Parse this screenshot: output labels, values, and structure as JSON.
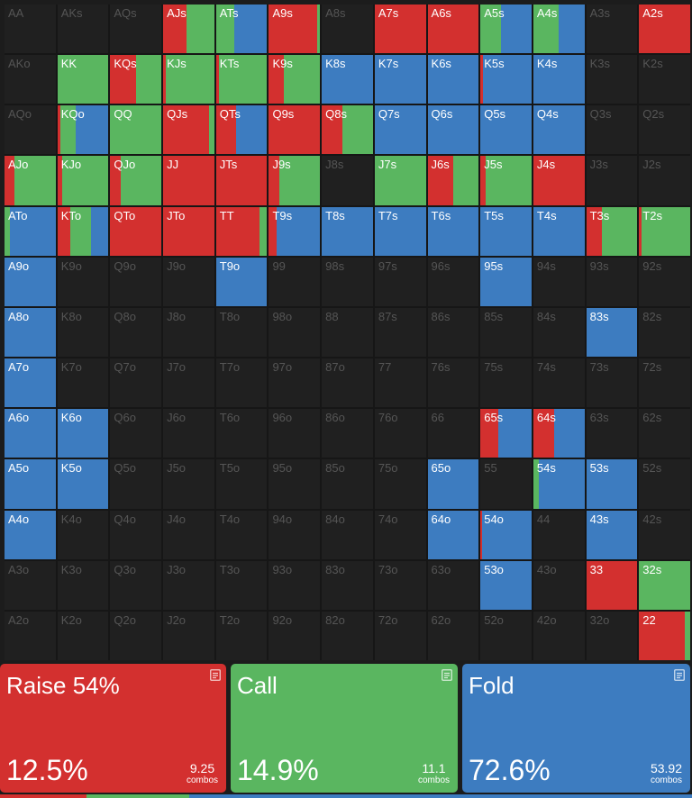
{
  "colors": {
    "raise": "#d3302f",
    "call": "#5ab660",
    "fold": "#3d7cc0",
    "empty": "#202020"
  },
  "ranks": [
    "A",
    "K",
    "Q",
    "J",
    "T",
    "9",
    "8",
    "7",
    "6",
    "5",
    "4",
    "3",
    "2"
  ],
  "hands": [
    {
      "label": "AA",
      "segs": []
    },
    {
      "label": "AKs",
      "segs": []
    },
    {
      "label": "AQs",
      "segs": []
    },
    {
      "label": "AJs",
      "segs": [
        [
          "raise",
          0.45
        ],
        [
          "call",
          0.55
        ]
      ]
    },
    {
      "label": "ATs",
      "segs": [
        [
          "call",
          0.35
        ],
        [
          "fold",
          0.65
        ]
      ]
    },
    {
      "label": "A9s",
      "segs": [
        [
          "raise",
          0.95
        ],
        [
          "call",
          0.05
        ]
      ]
    },
    {
      "label": "A8s",
      "segs": []
    },
    {
      "label": "A7s",
      "segs": [
        [
          "raise",
          1
        ]
      ]
    },
    {
      "label": "A6s",
      "segs": [
        [
          "raise",
          1
        ]
      ]
    },
    {
      "label": "A5s",
      "segs": [
        [
          "call",
          0.4
        ],
        [
          "fold",
          0.6
        ]
      ]
    },
    {
      "label": "A4s",
      "segs": [
        [
          "call",
          0.5
        ],
        [
          "fold",
          0.5
        ]
      ]
    },
    {
      "label": "A3s",
      "segs": []
    },
    {
      "label": "A2s",
      "segs": [
        [
          "raise",
          1
        ]
      ]
    },
    {
      "label": "AKo",
      "segs": []
    },
    {
      "label": "KK",
      "segs": [
        [
          "call",
          1
        ]
      ]
    },
    {
      "label": "KQs",
      "segs": [
        [
          "raise",
          0.5
        ],
        [
          "call",
          0.5
        ]
      ]
    },
    {
      "label": "KJs",
      "segs": [
        [
          "raise",
          0.05
        ],
        [
          "call",
          0.95
        ]
      ]
    },
    {
      "label": "KTs",
      "segs": [
        [
          "raise",
          0.05
        ],
        [
          "call",
          0.95
        ]
      ]
    },
    {
      "label": "K9s",
      "segs": [
        [
          "raise",
          0.3
        ],
        [
          "call",
          0.7
        ]
      ]
    },
    {
      "label": "K8s",
      "segs": [
        [
          "fold",
          1
        ]
      ]
    },
    {
      "label": "K7s",
      "segs": [
        [
          "fold",
          1
        ]
      ]
    },
    {
      "label": "K6s",
      "segs": [
        [
          "fold",
          1
        ]
      ]
    },
    {
      "label": "K5s",
      "segs": [
        [
          "raise",
          0.05
        ],
        [
          "fold",
          0.95
        ]
      ]
    },
    {
      "label": "K4s",
      "segs": [
        [
          "fold",
          1
        ]
      ]
    },
    {
      "label": "K3s",
      "segs": []
    },
    {
      "label": "K2s",
      "segs": []
    },
    {
      "label": "AQo",
      "segs": []
    },
    {
      "label": "KQo",
      "segs": [
        [
          "raise",
          0.05
        ],
        [
          "call",
          0.3
        ],
        [
          "fold",
          0.65
        ]
      ]
    },
    {
      "label": "QQ",
      "segs": [
        [
          "call",
          1
        ]
      ]
    },
    {
      "label": "QJs",
      "segs": [
        [
          "raise",
          0.9
        ],
        [
          "call",
          0.1
        ]
      ]
    },
    {
      "label": "QTs",
      "segs": [
        [
          "raise",
          0.4
        ],
        [
          "fold",
          0.6
        ]
      ]
    },
    {
      "label": "Q9s",
      "segs": [
        [
          "raise",
          1
        ]
      ]
    },
    {
      "label": "Q8s",
      "segs": [
        [
          "raise",
          0.4
        ],
        [
          "call",
          0.6
        ]
      ]
    },
    {
      "label": "Q7s",
      "segs": [
        [
          "fold",
          1
        ]
      ]
    },
    {
      "label": "Q6s",
      "segs": [
        [
          "fold",
          1
        ]
      ]
    },
    {
      "label": "Q5s",
      "segs": [
        [
          "fold",
          1
        ]
      ]
    },
    {
      "label": "Q4s",
      "segs": [
        [
          "fold",
          1
        ]
      ]
    },
    {
      "label": "Q3s",
      "segs": []
    },
    {
      "label": "Q2s",
      "segs": []
    },
    {
      "label": "AJo",
      "segs": [
        [
          "raise",
          0.2
        ],
        [
          "call",
          0.8
        ]
      ]
    },
    {
      "label": "KJo",
      "segs": [
        [
          "raise",
          0.1
        ],
        [
          "call",
          0.9
        ]
      ]
    },
    {
      "label": "QJo",
      "segs": [
        [
          "raise",
          0.2
        ],
        [
          "call",
          0.8
        ]
      ]
    },
    {
      "label": "JJ",
      "segs": [
        [
          "raise",
          1
        ]
      ]
    },
    {
      "label": "JTs",
      "segs": [
        [
          "raise",
          1
        ]
      ]
    },
    {
      "label": "J9s",
      "segs": [
        [
          "raise",
          0.2
        ],
        [
          "call",
          0.8
        ]
      ]
    },
    {
      "label": "J8s",
      "segs": []
    },
    {
      "label": "J7s",
      "segs": [
        [
          "call",
          1
        ]
      ]
    },
    {
      "label": "J6s",
      "segs": [
        [
          "raise",
          0.5
        ],
        [
          "call",
          0.5
        ]
      ]
    },
    {
      "label": "J5s",
      "segs": [
        [
          "raise",
          0.1
        ],
        [
          "call",
          0.9
        ]
      ]
    },
    {
      "label": "J4s",
      "segs": [
        [
          "raise",
          1
        ]
      ]
    },
    {
      "label": "J3s",
      "segs": []
    },
    {
      "label": "J2s",
      "segs": []
    },
    {
      "label": "ATo",
      "segs": [
        [
          "call",
          0.1
        ],
        [
          "fold",
          0.9
        ]
      ]
    },
    {
      "label": "KTo",
      "segs": [
        [
          "raise",
          0.25
        ],
        [
          "call",
          0.4
        ],
        [
          "fold",
          0.35
        ]
      ]
    },
    {
      "label": "QTo",
      "segs": [
        [
          "raise",
          1
        ]
      ]
    },
    {
      "label": "JTo",
      "segs": [
        [
          "raise",
          1
        ]
      ]
    },
    {
      "label": "TT",
      "segs": [
        [
          "raise",
          0.85
        ],
        [
          "call",
          0.15
        ]
      ]
    },
    {
      "label": "T9s",
      "segs": [
        [
          "raise",
          0.15
        ],
        [
          "fold",
          0.85
        ]
      ]
    },
    {
      "label": "T8s",
      "segs": [
        [
          "fold",
          1
        ]
      ]
    },
    {
      "label": "T7s",
      "segs": [
        [
          "fold",
          1
        ]
      ]
    },
    {
      "label": "T6s",
      "segs": [
        [
          "fold",
          1
        ]
      ]
    },
    {
      "label": "T5s",
      "segs": [
        [
          "fold",
          1
        ]
      ]
    },
    {
      "label": "T4s",
      "segs": [
        [
          "fold",
          1
        ]
      ]
    },
    {
      "label": "T3s",
      "segs": [
        [
          "raise",
          0.3
        ],
        [
          "call",
          0.7
        ]
      ]
    },
    {
      "label": "T2s",
      "segs": [
        [
          "raise",
          0.05
        ],
        [
          "call",
          0.95
        ]
      ]
    },
    {
      "label": "A9o",
      "segs": [
        [
          "fold",
          1
        ]
      ]
    },
    {
      "label": "K9o",
      "segs": []
    },
    {
      "label": "Q9o",
      "segs": []
    },
    {
      "label": "J9o",
      "segs": []
    },
    {
      "label": "T9o",
      "segs": [
        [
          "fold",
          1
        ]
      ]
    },
    {
      "label": "99",
      "segs": []
    },
    {
      "label": "98s",
      "segs": []
    },
    {
      "label": "97s",
      "segs": []
    },
    {
      "label": "96s",
      "segs": []
    },
    {
      "label": "95s",
      "segs": [
        [
          "fold",
          1
        ]
      ]
    },
    {
      "label": "94s",
      "segs": []
    },
    {
      "label": "93s",
      "segs": []
    },
    {
      "label": "92s",
      "segs": []
    },
    {
      "label": "A8o",
      "segs": [
        [
          "fold",
          1
        ]
      ]
    },
    {
      "label": "K8o",
      "segs": []
    },
    {
      "label": "Q8o",
      "segs": []
    },
    {
      "label": "J8o",
      "segs": []
    },
    {
      "label": "T8o",
      "segs": []
    },
    {
      "label": "98o",
      "segs": []
    },
    {
      "label": "88",
      "segs": []
    },
    {
      "label": "87s",
      "segs": []
    },
    {
      "label": "86s",
      "segs": []
    },
    {
      "label": "85s",
      "segs": []
    },
    {
      "label": "84s",
      "segs": []
    },
    {
      "label": "83s",
      "segs": [
        [
          "fold",
          1
        ]
      ]
    },
    {
      "label": "82s",
      "segs": []
    },
    {
      "label": "A7o",
      "segs": [
        [
          "fold",
          1
        ]
      ]
    },
    {
      "label": "K7o",
      "segs": []
    },
    {
      "label": "Q7o",
      "segs": []
    },
    {
      "label": "J7o",
      "segs": []
    },
    {
      "label": "T7o",
      "segs": []
    },
    {
      "label": "97o",
      "segs": []
    },
    {
      "label": "87o",
      "segs": []
    },
    {
      "label": "77",
      "segs": []
    },
    {
      "label": "76s",
      "segs": []
    },
    {
      "label": "75s",
      "segs": []
    },
    {
      "label": "74s",
      "segs": []
    },
    {
      "label": "73s",
      "segs": []
    },
    {
      "label": "72s",
      "segs": []
    },
    {
      "label": "A6o",
      "segs": [
        [
          "fold",
          1
        ]
      ]
    },
    {
      "label": "K6o",
      "segs": [
        [
          "fold",
          1
        ]
      ]
    },
    {
      "label": "Q6o",
      "segs": []
    },
    {
      "label": "J6o",
      "segs": []
    },
    {
      "label": "T6o",
      "segs": []
    },
    {
      "label": "96o",
      "segs": []
    },
    {
      "label": "86o",
      "segs": []
    },
    {
      "label": "76o",
      "segs": []
    },
    {
      "label": "66",
      "segs": []
    },
    {
      "label": "65s",
      "segs": [
        [
          "raise",
          0.35
        ],
        [
          "fold",
          0.65
        ]
      ]
    },
    {
      "label": "64s",
      "segs": [
        [
          "raise",
          0.4
        ],
        [
          "fold",
          0.6
        ]
      ]
    },
    {
      "label": "63s",
      "segs": []
    },
    {
      "label": "62s",
      "segs": []
    },
    {
      "label": "A5o",
      "segs": [
        [
          "fold",
          1
        ]
      ]
    },
    {
      "label": "K5o",
      "segs": [
        [
          "fold",
          1
        ]
      ]
    },
    {
      "label": "Q5o",
      "segs": []
    },
    {
      "label": "J5o",
      "segs": []
    },
    {
      "label": "T5o",
      "segs": []
    },
    {
      "label": "95o",
      "segs": []
    },
    {
      "label": "85o",
      "segs": []
    },
    {
      "label": "75o",
      "segs": []
    },
    {
      "label": "65o",
      "segs": [
        [
          "fold",
          1
        ]
      ]
    },
    {
      "label": "55",
      "segs": []
    },
    {
      "label": "54s",
      "segs": [
        [
          "call",
          0.1
        ],
        [
          "fold",
          0.9
        ]
      ]
    },
    {
      "label": "53s",
      "segs": [
        [
          "fold",
          1
        ]
      ]
    },
    {
      "label": "52s",
      "segs": []
    },
    {
      "label": "A4o",
      "segs": [
        [
          "fold",
          1
        ]
      ]
    },
    {
      "label": "K4o",
      "segs": []
    },
    {
      "label": "Q4o",
      "segs": []
    },
    {
      "label": "J4o",
      "segs": []
    },
    {
      "label": "T4o",
      "segs": []
    },
    {
      "label": "94o",
      "segs": []
    },
    {
      "label": "84o",
      "segs": []
    },
    {
      "label": "74o",
      "segs": []
    },
    {
      "label": "64o",
      "segs": [
        [
          "fold",
          1
        ]
      ]
    },
    {
      "label": "54o",
      "segs": [
        [
          "raise",
          0.03
        ],
        [
          "fold",
          0.97
        ]
      ]
    },
    {
      "label": "44",
      "segs": []
    },
    {
      "label": "43s",
      "segs": [
        [
          "fold",
          1
        ]
      ]
    },
    {
      "label": "42s",
      "segs": []
    },
    {
      "label": "A3o",
      "segs": []
    },
    {
      "label": "K3o",
      "segs": []
    },
    {
      "label": "Q3o",
      "segs": []
    },
    {
      "label": "J3o",
      "segs": []
    },
    {
      "label": "T3o",
      "segs": []
    },
    {
      "label": "93o",
      "segs": []
    },
    {
      "label": "83o",
      "segs": []
    },
    {
      "label": "73o",
      "segs": []
    },
    {
      "label": "63o",
      "segs": []
    },
    {
      "label": "53o",
      "segs": [
        [
          "fold",
          1
        ]
      ]
    },
    {
      "label": "43o",
      "segs": []
    },
    {
      "label": "33",
      "segs": [
        [
          "raise",
          1
        ]
      ]
    },
    {
      "label": "32s",
      "segs": [
        [
          "call",
          1
        ]
      ]
    },
    {
      "label": "A2o",
      "segs": []
    },
    {
      "label": "K2o",
      "segs": []
    },
    {
      "label": "Q2o",
      "segs": []
    },
    {
      "label": "J2o",
      "segs": []
    },
    {
      "label": "T2o",
      "segs": []
    },
    {
      "label": "92o",
      "segs": []
    },
    {
      "label": "82o",
      "segs": []
    },
    {
      "label": "72o",
      "segs": []
    },
    {
      "label": "62o",
      "segs": []
    },
    {
      "label": "52o",
      "segs": []
    },
    {
      "label": "42o",
      "segs": []
    },
    {
      "label": "32o",
      "segs": []
    },
    {
      "label": "22",
      "segs": [
        [
          "raise",
          0.9
        ],
        [
          "call",
          0.1
        ]
      ]
    }
  ],
  "summary": {
    "raise": {
      "title": "Raise 54%",
      "percent": "12.5%",
      "combos": "9.25",
      "combos_unit": "combos",
      "icon": "note-icon"
    },
    "call": {
      "title": "Call",
      "percent": "14.9%",
      "combos": "11.1",
      "combos_unit": "combos",
      "icon": "note-icon"
    },
    "fold": {
      "title": "Fold",
      "percent": "72.6%",
      "combos": "53.92",
      "combos_unit": "combos",
      "icon": "note-icon"
    }
  },
  "bottom_strip": [
    [
      "raise",
      0.125
    ],
    [
      "call",
      0.149
    ],
    [
      "fold",
      0.726
    ]
  ]
}
